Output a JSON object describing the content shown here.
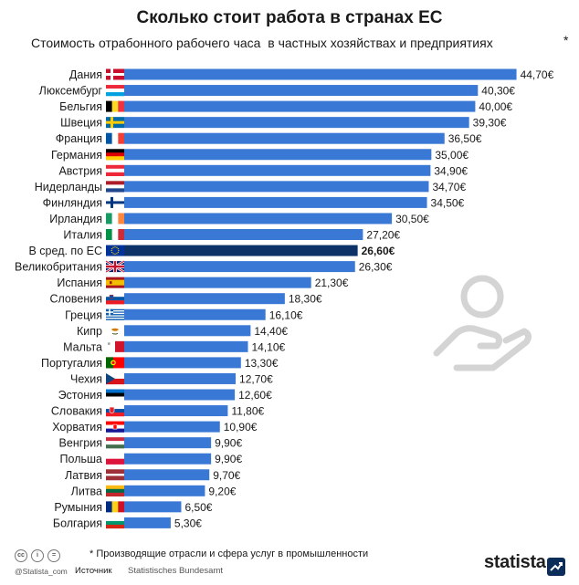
{
  "header": {
    "title": "Сколько стоит работа в странах ЕС",
    "subtitle": "Стоимость отрабонного рабочего часа  в частных хозяйствах и предприятиях",
    "subtitle_marker": "*"
  },
  "chart_data": {
    "type": "bar",
    "orientation": "horizontal",
    "title": "Сколько стоит работа в странах ЕС",
    "subtitle": "Стоимость отрабонного рабочего часа  в частных хозяйствах и предприятиях",
    "categories": [
      "Дания",
      "Люксембург",
      "Бельгия",
      "Швеция",
      "Франция",
      "Германия",
      "Австрия",
      "Нидерланды",
      "Финляндия",
      "Ирландия",
      "Италия",
      "В сред. по ЕС",
      "Великобритания",
      "Испания",
      "Словения",
      "Греция",
      "Кипр",
      "Мальта",
      "Португалия",
      "Чехия",
      "Эстония",
      "Словакия",
      "Хорватия",
      "Венгрия",
      "Польша",
      "Латвия",
      "Литва",
      "Румыния",
      "Болгария"
    ],
    "values": [
      44.7,
      40.3,
      40.0,
      39.3,
      36.5,
      35.0,
      34.9,
      34.7,
      34.5,
      30.5,
      27.2,
      26.6,
      26.3,
      21.3,
      18.3,
      16.1,
      14.4,
      14.1,
      13.3,
      12.7,
      12.6,
      11.8,
      10.9,
      9.9,
      9.9,
      9.7,
      9.2,
      6.5,
      5.3
    ],
    "value_labels": [
      "44,70€",
      "40,30€",
      "40,00€",
      "39,30€",
      "36,50€",
      "35,00€",
      "34,90€",
      "34,70€",
      "34,50€",
      "30,50€",
      "27,20€",
      "26,60€",
      "26,30€",
      "21,30€",
      "18,30€",
      "16,10€",
      "14,40€",
      "14,10€",
      "13,30€",
      "12,70€",
      "12,60€",
      "11,80€",
      "10,90€",
      "9,90€",
      "9,90€",
      "9,70€",
      "9,20€",
      "6,50€",
      "5,30€"
    ],
    "highlight_index": 11,
    "flag_icons": [
      "flag-denmark-icon",
      "flag-luxembourg-icon",
      "flag-belgium-icon",
      "flag-sweden-icon",
      "flag-france-icon",
      "flag-germany-icon",
      "flag-austria-icon",
      "flag-netherlands-icon",
      "flag-finland-icon",
      "flag-ireland-icon",
      "flag-italy-icon",
      "flag-eu-icon",
      "flag-uk-icon",
      "flag-spain-icon",
      "flag-slovenia-icon",
      "flag-greece-icon",
      "flag-cyprus-icon",
      "flag-malta-icon",
      "flag-portugal-icon",
      "flag-czechia-icon",
      "flag-estonia-icon",
      "flag-slovakia-icon",
      "flag-croatia-icon",
      "flag-hungary-icon",
      "flag-poland-icon",
      "flag-latvia-icon",
      "flag-lithuania-icon",
      "flag-romania-icon",
      "flag-bulgaria-icon"
    ],
    "xlim": [
      0,
      45
    ],
    "grid": false,
    "colors": {
      "bar": "#3a78d6",
      "highlight_bar": "#0d3268"
    }
  },
  "footer": {
    "footnote": "* Производящие отрасли и сфера услуг в промышленности",
    "license_icons": [
      "cc-icon",
      "info-icon",
      "equal-icon"
    ],
    "copyright": "@Statista_com",
    "source_label": "Источник",
    "source_value": "Statistisches Bundesamt",
    "brand": "statista"
  }
}
